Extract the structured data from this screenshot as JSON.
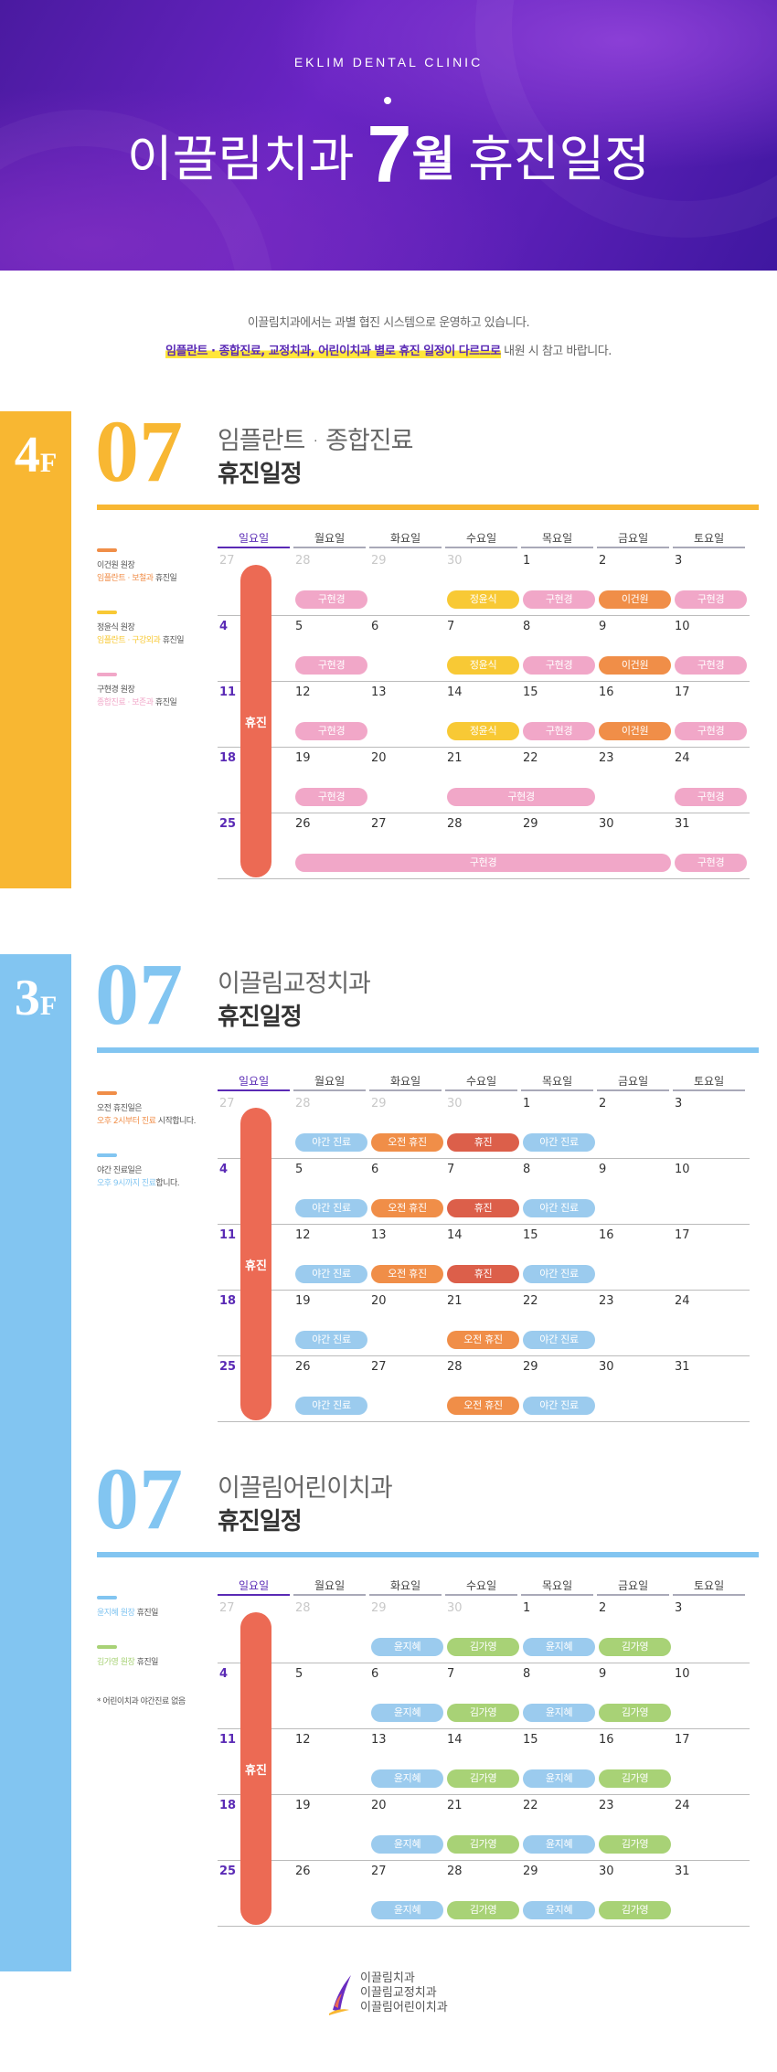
{
  "header": {
    "subtitle": "EKLIM DENTAL CLINIC",
    "title_pre": "이끌림치과",
    "title_num": "7",
    "title_unit": "월",
    "title_post": "휴진일정"
  },
  "intro": {
    "line1": "이끌림치과에서는 과별 협진 시스템으로 운영하고 있습니다.",
    "line2_highlight": "임플란트 · 종합진료, 교정치과, 어린이치과 별로 휴진 일정이 다르므로",
    "line2_rest": " 내원 시 참고 바랍니다."
  },
  "weekdays": [
    "일요일",
    "월요일",
    "화요일",
    "수요일",
    "목요일",
    "금요일",
    "토요일"
  ],
  "weeks": [
    [
      27,
      28,
      29,
      30,
      1,
      2,
      3
    ],
    [
      4,
      5,
      6,
      7,
      8,
      9,
      10
    ],
    [
      11,
      12,
      13,
      14,
      15,
      16,
      17
    ],
    [
      18,
      19,
      20,
      21,
      22,
      23,
      24
    ],
    [
      25,
      26,
      27,
      28,
      29,
      30,
      31
    ]
  ],
  "colors": {
    "yellow": "#f8b732",
    "blue": "#82c5f1",
    "purple": "#5a2ab5",
    "red": "#ec6a54",
    "pink": "#f1a7c8",
    "gold": "#f8c935",
    "orange": "#f08e48",
    "lightblue": "#9bcbee",
    "darkred": "#dc5f4a",
    "green": "#a8d276"
  },
  "floor4": {
    "floor_label": "4",
    "floor_suffix": "F",
    "month": "07",
    "title": "임플란트 · 종합진료",
    "subtitle": "휴진일정",
    "sunday_label": "휴진",
    "legend": [
      {
        "name": "이건원 원장",
        "desc_hl": "임플란트 · 보철과",
        "desc_rest": " 휴진일",
        "color": "#f08e48"
      },
      {
        "name": "정윤식 원장",
        "desc_hl": "임플란트 · 구강외과",
        "desc_rest": " 휴진일",
        "color": "#f8c935"
      },
      {
        "name": "구현경 원장",
        "desc_hl": "종합진료 · 보존과",
        "desc_rest": " 휴진일",
        "color": "#f1a7c8"
      }
    ],
    "pills": [
      [
        {
          "text": "구현경",
          "s": 1,
          "e": 1,
          "c": "pink"
        },
        {
          "text": "정윤식",
          "s": 3,
          "e": 3,
          "c": "gold"
        },
        {
          "text": "구현경",
          "s": 4,
          "e": 4,
          "c": "pink"
        },
        {
          "text": "이건원",
          "s": 5,
          "e": 5,
          "c": "orange"
        },
        {
          "text": "구현경",
          "s": 6,
          "e": 6,
          "c": "pink"
        }
      ],
      [
        {
          "text": "구현경",
          "s": 1,
          "e": 1,
          "c": "pink"
        },
        {
          "text": "정윤식",
          "s": 3,
          "e": 3,
          "c": "gold"
        },
        {
          "text": "구현경",
          "s": 4,
          "e": 4,
          "c": "pink"
        },
        {
          "text": "이건원",
          "s": 5,
          "e": 5,
          "c": "orange"
        },
        {
          "text": "구현경",
          "s": 6,
          "e": 6,
          "c": "pink"
        }
      ],
      [
        {
          "text": "구현경",
          "s": 1,
          "e": 1,
          "c": "pink"
        },
        {
          "text": "정윤식",
          "s": 3,
          "e": 3,
          "c": "gold"
        },
        {
          "text": "구현경",
          "s": 4,
          "e": 4,
          "c": "pink"
        },
        {
          "text": "이건원",
          "s": 5,
          "e": 5,
          "c": "orange"
        },
        {
          "text": "구현경",
          "s": 6,
          "e": 6,
          "c": "pink"
        }
      ],
      [
        {
          "text": "구현경",
          "s": 1,
          "e": 1,
          "c": "pink"
        },
        {
          "text": "구현경",
          "s": 3,
          "e": 4,
          "c": "pink"
        },
        {
          "text": "구현경",
          "s": 6,
          "e": 6,
          "c": "pink"
        }
      ],
      [
        {
          "text": "구현경",
          "s": 1,
          "e": 5,
          "c": "pink"
        },
        {
          "text": "구현경",
          "s": 6,
          "e": 6,
          "c": "pink"
        }
      ]
    ]
  },
  "floor3": {
    "floor_label": "3",
    "floor_suffix": "F",
    "month": "07",
    "title": "이끌림교정치과",
    "subtitle": "휴진일정",
    "sunday_label": "휴진",
    "legend": [
      {
        "name": "오전 휴진일은",
        "desc_hl": "오후 2시부터 진료",
        "desc_rest": " 시작합니다.",
        "color": "#f08e48"
      },
      {
        "name": "야간 진료일은",
        "desc_hl": "오후 9시까지 진료",
        "desc_rest": "합니다.",
        "color": "#82c5f1"
      }
    ],
    "pills": [
      [
        {
          "text": "야간 진료",
          "s": 1,
          "e": 1,
          "c": "lightblue"
        },
        {
          "text": "오전 휴진",
          "s": 2,
          "e": 2,
          "c": "orange"
        },
        {
          "text": "휴진",
          "s": 3,
          "e": 3,
          "c": "darkred"
        },
        {
          "text": "야간 진료",
          "s": 4,
          "e": 4,
          "c": "lightblue"
        }
      ],
      [
        {
          "text": "야간 진료",
          "s": 1,
          "e": 1,
          "c": "lightblue"
        },
        {
          "text": "오전 휴진",
          "s": 2,
          "e": 2,
          "c": "orange"
        },
        {
          "text": "휴진",
          "s": 3,
          "e": 3,
          "c": "darkred"
        },
        {
          "text": "야간 진료",
          "s": 4,
          "e": 4,
          "c": "lightblue"
        }
      ],
      [
        {
          "text": "야간 진료",
          "s": 1,
          "e": 1,
          "c": "lightblue"
        },
        {
          "text": "오전 휴진",
          "s": 2,
          "e": 2,
          "c": "orange"
        },
        {
          "text": "휴진",
          "s": 3,
          "e": 3,
          "c": "darkred"
        },
        {
          "text": "야간 진료",
          "s": 4,
          "e": 4,
          "c": "lightblue"
        }
      ],
      [
        {
          "text": "야간 진료",
          "s": 1,
          "e": 1,
          "c": "lightblue"
        },
        {
          "text": "오전 휴진",
          "s": 3,
          "e": 3,
          "c": "orange"
        },
        {
          "text": "야간 진료",
          "s": 4,
          "e": 4,
          "c": "lightblue"
        }
      ],
      [
        {
          "text": "야간 진료",
          "s": 1,
          "e": 1,
          "c": "lightblue"
        },
        {
          "text": "오전 휴진",
          "s": 3,
          "e": 3,
          "c": "orange"
        },
        {
          "text": "야간 진료",
          "s": 4,
          "e": 4,
          "c": "lightblue"
        }
      ]
    ]
  },
  "floorkids": {
    "month": "07",
    "title": "이끌림어린이치과",
    "subtitle": "휴진일정",
    "sunday_label": "휴진",
    "legend": [
      {
        "name": "",
        "desc_hl": "윤지혜 원장",
        "desc_rest": " 휴진일",
        "color": "#82c5f1"
      },
      {
        "name": "",
        "desc_hl": "김가영 원장",
        "desc_rest": " 휴진일",
        "color": "#a8d276"
      }
    ],
    "note": "* 어린이치과 야간진료 없음",
    "pills": [
      [
        {
          "text": "윤지혜",
          "s": 2,
          "e": 2,
          "c": "lightblue"
        },
        {
          "text": "김가영",
          "s": 3,
          "e": 3,
          "c": "green"
        },
        {
          "text": "윤지혜",
          "s": 4,
          "e": 4,
          "c": "lightblue"
        },
        {
          "text": "김가영",
          "s": 5,
          "e": 5,
          "c": "green"
        }
      ],
      [
        {
          "text": "윤지혜",
          "s": 2,
          "e": 2,
          "c": "lightblue"
        },
        {
          "text": "김가영",
          "s": 3,
          "e": 3,
          "c": "green"
        },
        {
          "text": "윤지혜",
          "s": 4,
          "e": 4,
          "c": "lightblue"
        },
        {
          "text": "김가영",
          "s": 5,
          "e": 5,
          "c": "green"
        }
      ],
      [
        {
          "text": "윤지혜",
          "s": 2,
          "e": 2,
          "c": "lightblue"
        },
        {
          "text": "김가영",
          "s": 3,
          "e": 3,
          "c": "green"
        },
        {
          "text": "윤지혜",
          "s": 4,
          "e": 4,
          "c": "lightblue"
        },
        {
          "text": "김가영",
          "s": 5,
          "e": 5,
          "c": "green"
        }
      ],
      [
        {
          "text": "윤지혜",
          "s": 2,
          "e": 2,
          "c": "lightblue"
        },
        {
          "text": "김가영",
          "s": 3,
          "e": 3,
          "c": "green"
        },
        {
          "text": "윤지혜",
          "s": 4,
          "e": 4,
          "c": "lightblue"
        },
        {
          "text": "김가영",
          "s": 5,
          "e": 5,
          "c": "green"
        }
      ],
      [
        {
          "text": "윤지혜",
          "s": 2,
          "e": 2,
          "c": "lightblue"
        },
        {
          "text": "김가영",
          "s": 3,
          "e": 3,
          "c": "green"
        },
        {
          "text": "윤지혜",
          "s": 4,
          "e": 4,
          "c": "lightblue"
        },
        {
          "text": "김가영",
          "s": 5,
          "e": 5,
          "c": "green"
        }
      ]
    ]
  },
  "footer": {
    "line1": "이끌림치과",
    "line2": "이끌림교정치과",
    "line3": "이끌림어린이치과"
  }
}
